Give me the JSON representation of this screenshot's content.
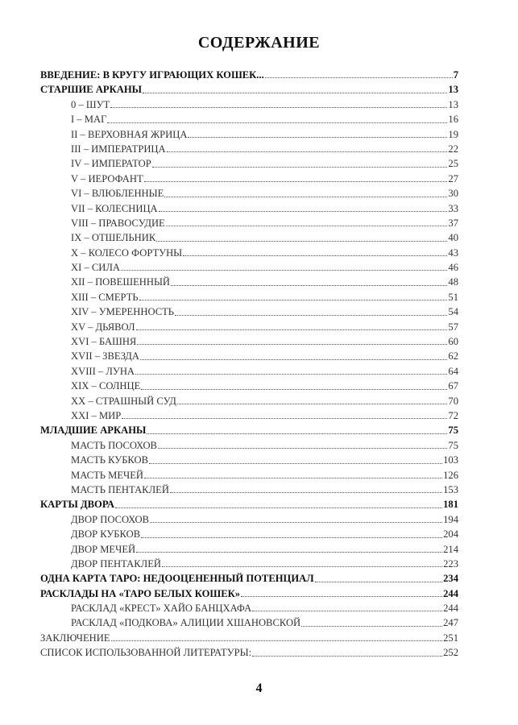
{
  "title": "СОДЕРЖАНИЕ",
  "entries": [
    {
      "label": "ВВЕДЕНИЕ: В КРУГУ ИГРАЮЩИХ КОШЕК...",
      "page": "7",
      "level": 1
    },
    {
      "label": "СТАРШИЕ АРКАНЫ",
      "page": "13",
      "level": 1
    },
    {
      "label": "0 – ШУТ",
      "page": "13",
      "level": 2
    },
    {
      "label": "I – МАГ",
      "page": "16",
      "level": 2
    },
    {
      "label": "II – ВЕРХОВНАЯ ЖРИЦА",
      "page": "19",
      "level": 2
    },
    {
      "label": "III – ИМПЕРАТРИЦА",
      "page": "22",
      "level": 2
    },
    {
      "label": "IV – ИМПЕРАТОР",
      "page": "25",
      "level": 2
    },
    {
      "label": "V – ИЕРОФАНТ",
      "page": "27",
      "level": 2
    },
    {
      "label": "VI – ВЛЮБЛЕННЫЕ",
      "page": "30",
      "level": 2
    },
    {
      "label": "VII – КОЛЕСНИЦА",
      "page": "33",
      "level": 2
    },
    {
      "label": "VIII – ПРАВОСУДИЕ",
      "page": "37",
      "level": 2
    },
    {
      "label": "IX – ОТШЕЛЬНИК",
      "page": "40",
      "level": 2
    },
    {
      "label": "X – КОЛЕСО ФОРТУНЫ",
      "page": "43",
      "level": 2
    },
    {
      "label": "XI – СИЛА",
      "page": "46",
      "level": 2
    },
    {
      "label": "XII – ПОВЕШЕННЫЙ",
      "page": "48",
      "level": 2
    },
    {
      "label": "XIII – СМЕРТЬ",
      "page": "51",
      "level": 2
    },
    {
      "label": "XIV – УМЕРЕННОСТЬ",
      "page": "54",
      "level": 2
    },
    {
      "label": "XV – ДЬЯВОЛ",
      "page": "57",
      "level": 2
    },
    {
      "label": "XVI – БАШНЯ",
      "page": "60",
      "level": 2
    },
    {
      "label": "XVII – ЗВЕЗДА",
      "page": "62",
      "level": 2
    },
    {
      "label": "XVIII – ЛУНА",
      "page": "64",
      "level": 2
    },
    {
      "label": "XIX – СОЛНЦЕ",
      "page": "67",
      "level": 2
    },
    {
      "label": "XX – СТРАШНЫЙ СУД",
      "page": "70",
      "level": 2
    },
    {
      "label": "XXI – МИР",
      "page": "72",
      "level": 2
    },
    {
      "label": "МЛАДШИЕ АРКАНЫ",
      "page": "75",
      "level": 1
    },
    {
      "label": "МАСТЬ ПОСОХОВ",
      "page": "75",
      "level": 2
    },
    {
      "label": "МАСТЬ КУБКОВ",
      "page": "103",
      "level": 2
    },
    {
      "label": "МАСТЬ МЕЧЕЙ",
      "page": "126",
      "level": 2
    },
    {
      "label": "МАСТЬ ПЕНТАКЛЕЙ",
      "page": "153",
      "level": 2
    },
    {
      "label": "КАРТЫ ДВОРА",
      "page": "181",
      "level": 1
    },
    {
      "label": "ДВОР ПОСОХОВ",
      "page": "194",
      "level": 2
    },
    {
      "label": "ДВОР КУБКОВ",
      "page": "204",
      "level": 2
    },
    {
      "label": "ДВОР МЕЧЕЙ",
      "page": "214",
      "level": 2
    },
    {
      "label": "ДВОР ПЕНТАКЛЕЙ",
      "page": "223",
      "level": 2
    },
    {
      "label": "ОДНА КАРТА ТАРО: НЕДООЦЕНЕННЫЙ ПОТЕНЦИАЛ",
      "page": "234",
      "level": 1
    },
    {
      "label": "РАСКЛАДЫ НА «ТАРО БЕЛЫХ КОШЕК»",
      "page": "244",
      "level": 1
    },
    {
      "label": "РАСКЛАД «КРЕСТ» ХАЙО БАНЦХАФА",
      "page": "244",
      "level": 2
    },
    {
      "label": "РАСКЛАД «ПОДКОВА» АЛИЦИИ ХШАНОВСКОЙ",
      "page": "247",
      "level": 2
    },
    {
      "label": "ЗАКЛЮЧЕНИЕ",
      "page": "251",
      "level": 0
    },
    {
      "label": "СПИСОК ИСПОЛЬЗОВАННОЙ ЛИТЕРАТУРЫ:",
      "page": "252",
      "level": 0
    }
  ],
  "page_number": "4"
}
